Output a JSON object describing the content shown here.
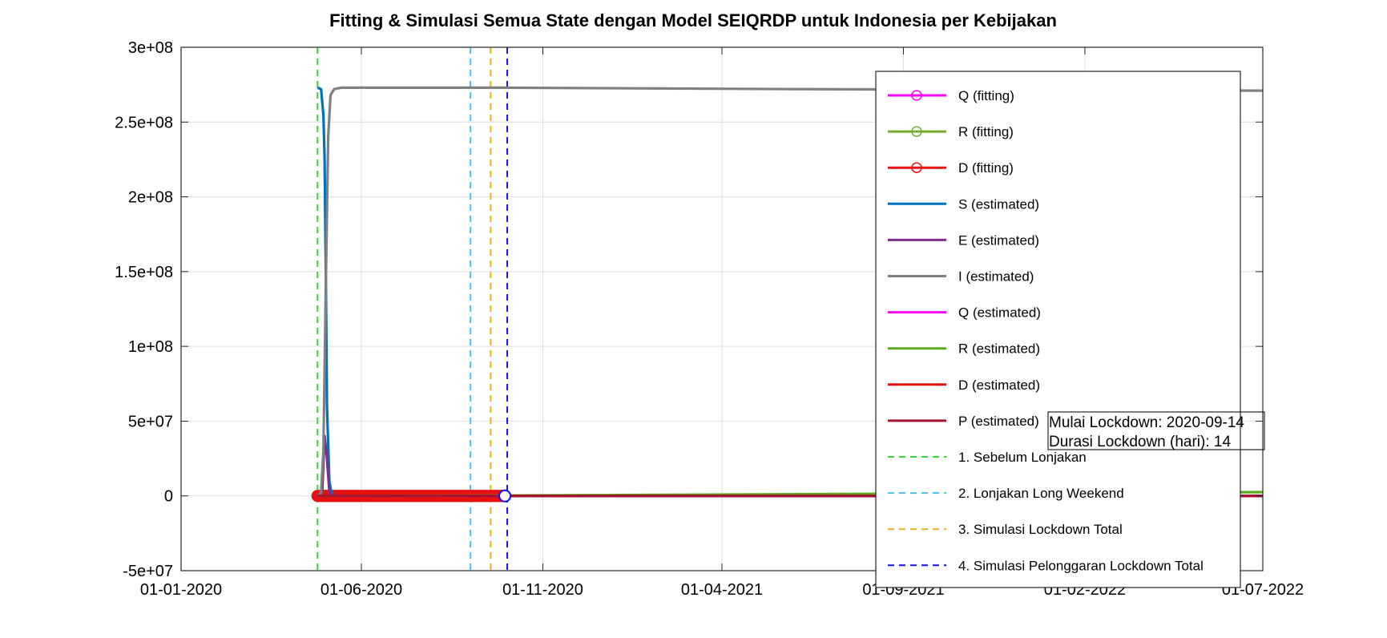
{
  "chart_data": {
    "type": "line",
    "title": "Fitting & Simulasi Semua State dengan Model SEIQRDP untuk Indonesia per Kebijakan",
    "xlabel": "",
    "ylabel": "",
    "xlim": [
      "2020-01-01",
      "2022-07-01"
    ],
    "ylim": [
      -50000000,
      300000000
    ],
    "grid": true,
    "x_ticks": [
      {
        "date": "2020-01-01",
        "label": "01-01-2020"
      },
      {
        "date": "2020-06-01",
        "label": "01-06-2020"
      },
      {
        "date": "2020-11-01",
        "label": "01-11-2020"
      },
      {
        "date": "2021-04-01",
        "label": "01-04-2021"
      },
      {
        "date": "2021-09-01",
        "label": "01-09-2021"
      },
      {
        "date": "2022-02-01",
        "label": "01-02-2022"
      },
      {
        "date": "2022-07-01",
        "label": "01-07-2022"
      }
    ],
    "y_ticks": [
      {
        "value": 300000000,
        "label": "3e+08"
      },
      {
        "value": 250000000,
        "label": "2.5e+08"
      },
      {
        "value": 200000000,
        "label": "2e+08"
      },
      {
        "value": 150000000,
        "label": "1.5e+08"
      },
      {
        "value": 100000000,
        "label": "1e+08"
      },
      {
        "value": 50000000,
        "label": "5e+07"
      },
      {
        "value": 0,
        "label": "0"
      },
      {
        "value": -50000000,
        "label": "-5e+07"
      }
    ],
    "legend_position": "top-right",
    "series": [
      {
        "name": "Q (fitting)",
        "color": "#ff00ff",
        "style": "solid-marker",
        "x": [
          "2020-04-25",
          "2020-09-30"
        ],
        "y": [
          0,
          0
        ]
      },
      {
        "name": "R (fitting)",
        "color": "#77ac30",
        "style": "solid-marker",
        "x": [
          "2020-04-25",
          "2020-09-30"
        ],
        "y": [
          0,
          0
        ]
      },
      {
        "name": "D (fitting)",
        "color": "#e81010",
        "style": "solid-marker",
        "x": [
          "2020-04-25",
          "2020-09-30"
        ],
        "y": [
          0,
          0
        ]
      },
      {
        "name": "S (estimated)",
        "color": "#0072bd",
        "style": "solid",
        "x": [
          "2020-04-25",
          "2020-04-28",
          "2020-04-30",
          "2020-05-01",
          "2020-05-02",
          "2020-05-03",
          "2020-05-05",
          "2020-05-07",
          "2020-05-10",
          "2022-07-01"
        ],
        "y": [
          273000000,
          272000000,
          255000000,
          225000000,
          150000000,
          60000000,
          10000000,
          1000000,
          0,
          0
        ]
      },
      {
        "name": "E (estimated)",
        "color": "#7e2f8e",
        "style": "solid",
        "x": [
          "2020-04-25",
          "2020-04-29",
          "2020-05-01",
          "2020-05-03",
          "2020-05-05",
          "2020-05-07",
          "2022-07-01"
        ],
        "y": [
          0,
          3000000,
          40000000,
          25000000,
          3000000,
          0,
          0
        ]
      },
      {
        "name": "I (estimated)",
        "color": "#808080",
        "style": "solid",
        "x": [
          "2020-04-25",
          "2020-04-28",
          "2020-04-30",
          "2020-05-02",
          "2020-05-04",
          "2020-05-06",
          "2020-05-09",
          "2020-05-15",
          "2020-10-01",
          "2021-06-01",
          "2022-07-01"
        ],
        "y": [
          0,
          2000000,
          30000000,
          140000000,
          240000000,
          268000000,
          272000000,
          273000000,
          273000000,
          272000000,
          271000000
        ]
      },
      {
        "name": "Q (estimated)",
        "color": "#ff00ff",
        "style": "solid",
        "x": [
          "2020-04-25",
          "2022-07-01"
        ],
        "y": [
          0,
          0
        ]
      },
      {
        "name": "R (estimated)",
        "color": "#5aab1e",
        "style": "solid",
        "x": [
          "2020-04-25",
          "2020-10-01",
          "2022-07-01"
        ],
        "y": [
          0,
          300000,
          2500000
        ]
      },
      {
        "name": "D (estimated)",
        "color": "#e81010",
        "style": "solid",
        "x": [
          "2020-04-25",
          "2022-07-01"
        ],
        "y": [
          0,
          0
        ]
      },
      {
        "name": "P (estimated)",
        "color": "#a2142f",
        "style": "solid",
        "x": [
          "2020-04-25",
          "2022-07-01"
        ],
        "y": [
          0,
          0
        ]
      },
      {
        "name": "1. Sebelum Lonjakan",
        "color": "#33dd33",
        "style": "dashed-vertical",
        "x": [
          "2020-04-25"
        ]
      },
      {
        "name": "2. Lonjakan Long Weekend",
        "color": "#4dbeee",
        "style": "dashed-vertical",
        "x": [
          "2020-09-01"
        ]
      },
      {
        "name": "3. Simulasi Lockdown Total",
        "color": "#edb120",
        "style": "dashed-vertical",
        "x": [
          "2020-09-18"
        ]
      },
      {
        "name": "4. Simulasi Pelonggaran Lockdown Total",
        "color": "#1010ee",
        "style": "dashed-vertical",
        "x": [
          "2020-10-02"
        ]
      }
    ],
    "annotation": [
      "Mulai Lockdown: 2020-09-14",
      "Durasi Lockdown (hari): 14"
    ]
  }
}
